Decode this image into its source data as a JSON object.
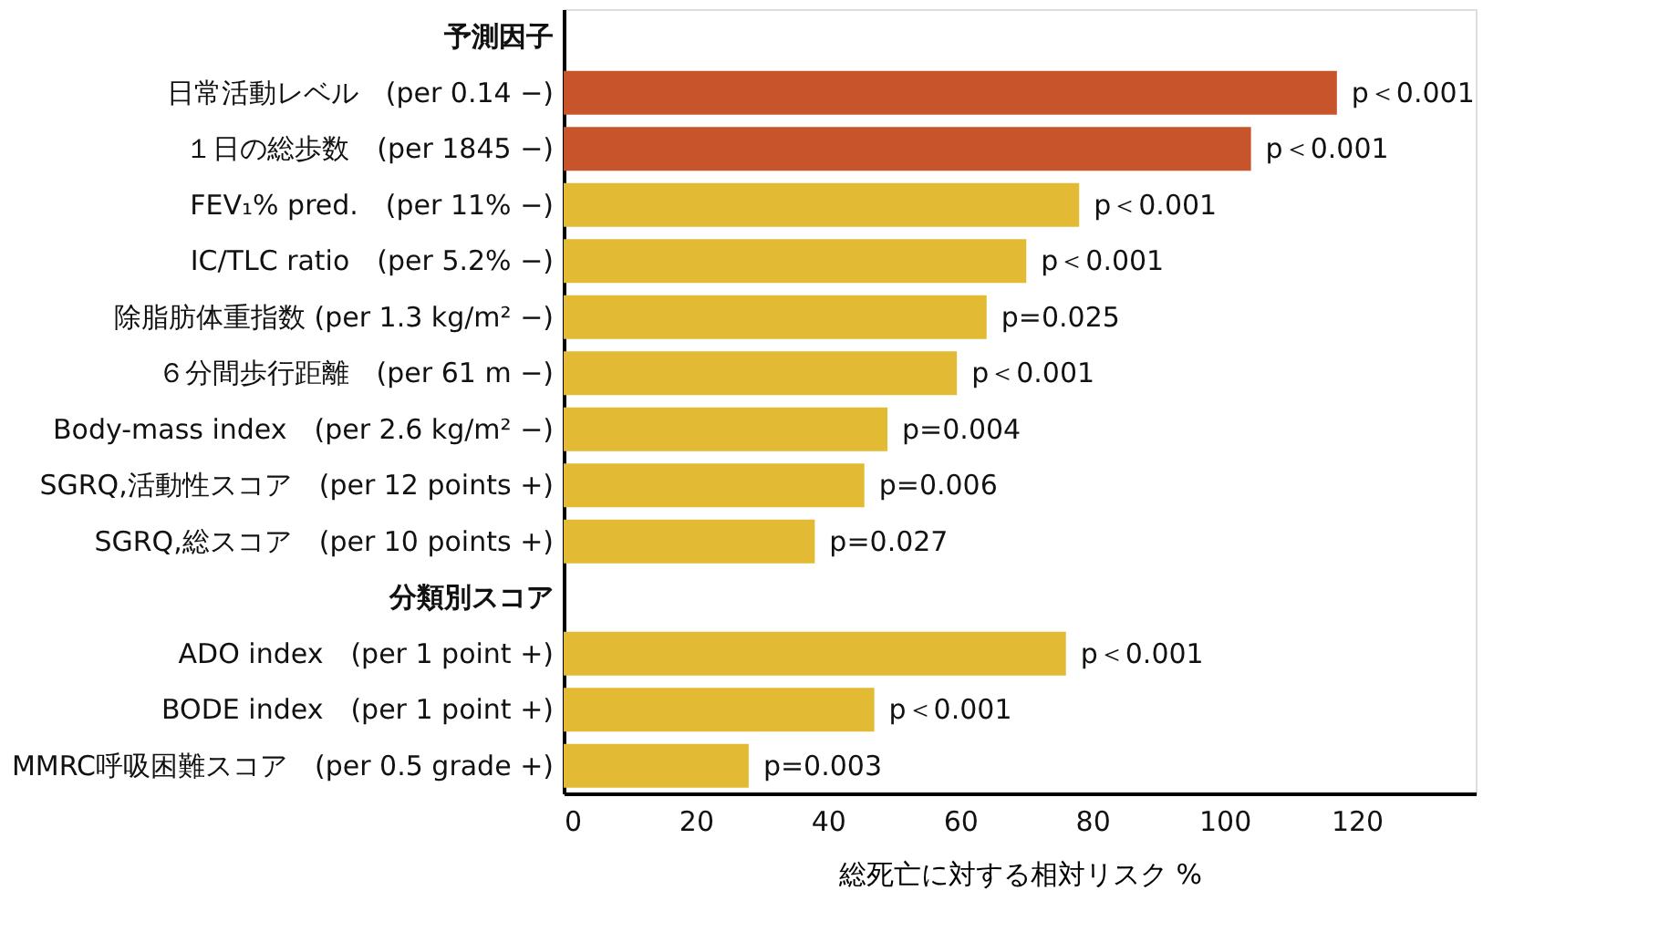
{
  "chart_data": {
    "type": "bar",
    "orientation": "horizontal",
    "categories": [
      "予測因子",
      "日常活動レベル　(per 0.14 −)",
      "１日の総歩数　(per 1845 −)",
      "FEV₁% pred.　(per 11% −)",
      "IC/TLC ratio　(per 5.2% −)",
      "除脂肪体重指数 (per 1.3 kg/m² −)",
      "６分間歩行距離　(per 61 m −)",
      "Body-mass index　(per 2.6 kg/m² −)",
      "SGRQ,活動性スコア　(per 12 points +)",
      "SGRQ,総スコア　(per 10 points +)",
      "分類別スコア",
      "ADO index　(per 1 point +)",
      "BODE index　(per 1 point +)",
      "MMRC呼吸困難スコア　(per 0.5 grade +)"
    ],
    "values": [
      null,
      117,
      104,
      78,
      70,
      64,
      59.5,
      49,
      45.5,
      38,
      null,
      76,
      47,
      28
    ],
    "colors": [
      "#c8542c",
      "#c8542c",
      "#c8542c",
      "#e2ba34",
      "#e2ba34",
      "#e2ba34",
      "#e2ba34",
      "#e2ba34",
      "#e2ba34",
      "#e2ba34",
      "#e2ba34",
      "#e2ba34",
      "#e2ba34",
      "#e2ba34"
    ],
    "annotations": [
      {
        "text": "p＜0.001",
        "x": 117,
        "y": "日常活動レベル　(per 0.14 −)"
      },
      {
        "text": "p＜0.001",
        "x": 104,
        "y": "１日の総歩数　(per 1845 −)"
      },
      {
        "text": "p＜0.001",
        "x": 78,
        "y": "FEV₁% pred.　(per 11% −)"
      },
      {
        "text": "p＜0.001",
        "x": 70,
        "y": "IC/TLC ratio　(per 5.2% −)"
      },
      {
        "text": "p=0.025",
        "x": 64,
        "y": "除脂肪体重指数 (per 1.3 kg/m² −)"
      },
      {
        "text": "p＜0.001",
        "x": 59.5,
        "y": "６分間歩行距離　(per 61 m −)"
      },
      {
        "text": "p=0.004",
        "x": 49,
        "y": "Body-mass index　(per 2.6 kg/m² −)"
      },
      {
        "text": "p=0.006",
        "x": 45.5,
        "y": "SGRQ,活動性スコア　(per 12 points +)"
      },
      {
        "text": "p=0.027",
        "x": 38,
        "y": "SGRQ,総スコア　(per 10 points +)"
      },
      {
        "text": "p＜0.001",
        "x": 76,
        "y": "ADO index　(per 1 point +)"
      },
      {
        "text": "p＜0.001",
        "x": 47,
        "y": "BODE index　(per 1 point +)"
      },
      {
        "text": "p=0.003",
        "x": 28,
        "y": "MMRC呼吸困難スコア　(per 0.5 grade +)"
      }
    ],
    "xlabel": "総死亡に対する相対リスク %",
    "xlim": [
      0,
      138
    ],
    "xticks": [
      0,
      20,
      40,
      60,
      80,
      100,
      120
    ],
    "grid": false
  }
}
